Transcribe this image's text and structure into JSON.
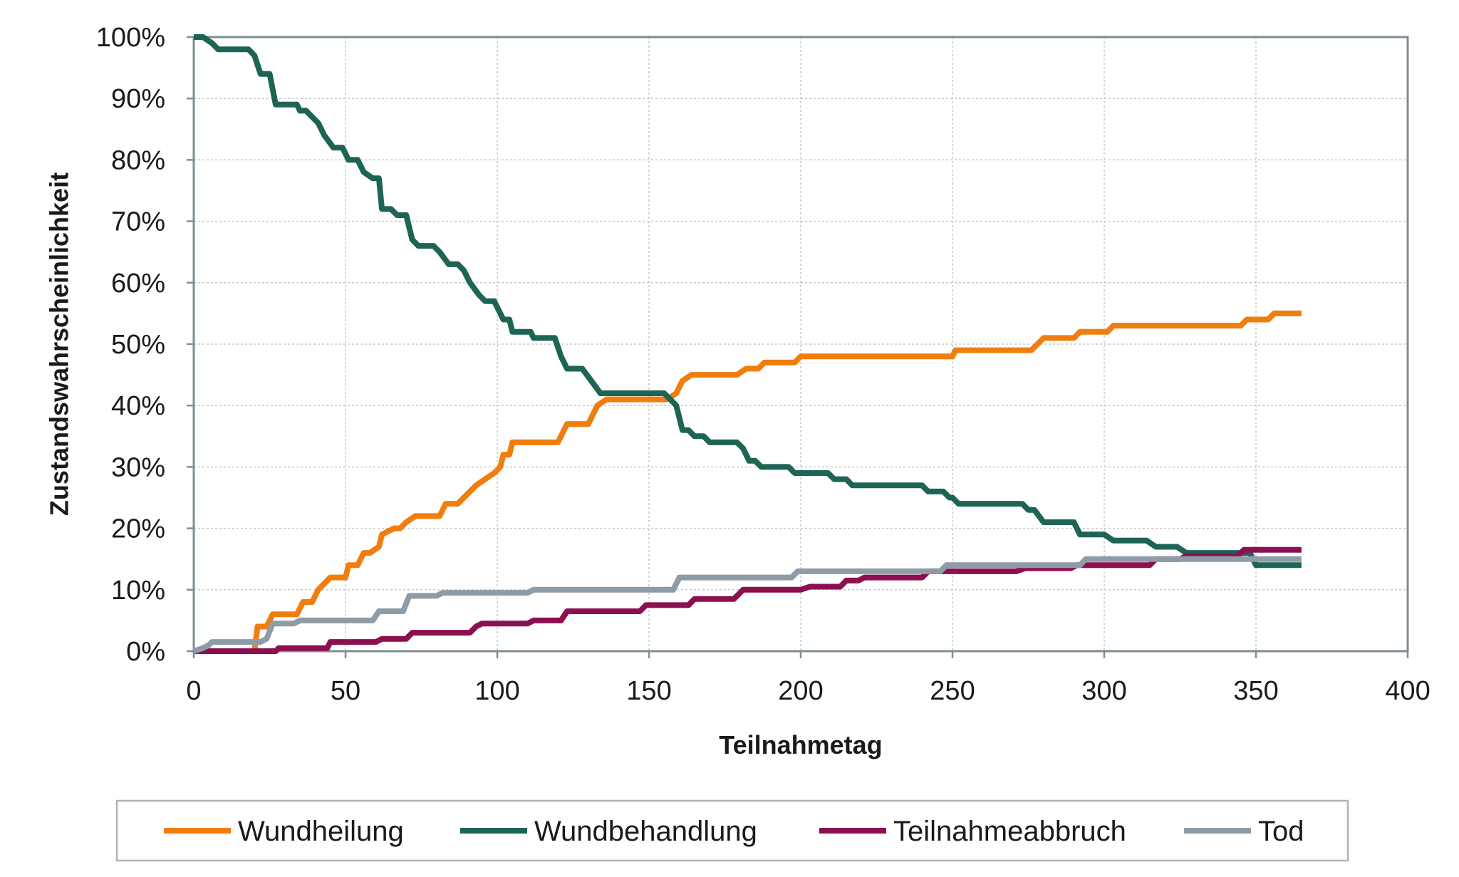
{
  "chart_data": {
    "type": "line",
    "title": "",
    "xlabel": "Teilnahmetag",
    "ylabel": "Zustandswahrscheinlichkeit",
    "xlim": [
      0,
      400
    ],
    "ylim": [
      0,
      100
    ],
    "x_ticks": [
      0,
      50,
      100,
      150,
      200,
      250,
      300,
      350,
      400
    ],
    "y_ticks": [
      0,
      10,
      20,
      30,
      40,
      50,
      60,
      70,
      80,
      90,
      100
    ],
    "y_tick_labels": [
      "0%",
      "10%",
      "20%",
      "30%",
      "40%",
      "50%",
      "60%",
      "70%",
      "80%",
      "90%",
      "100%"
    ],
    "grid": true,
    "legend_position": "bottom",
    "series": [
      {
        "name": "Wundheilung",
        "color": "#f07e0e",
        "points": [
          [
            0,
            0
          ],
          [
            20,
            0
          ],
          [
            21,
            4
          ],
          [
            24,
            4
          ],
          [
            26,
            6
          ],
          [
            34,
            6
          ],
          [
            36,
            8
          ],
          [
            39,
            8
          ],
          [
            41,
            10
          ],
          [
            43,
            11
          ],
          [
            45,
            12
          ],
          [
            50,
            12
          ],
          [
            51,
            14
          ],
          [
            54,
            14
          ],
          [
            56,
            16
          ],
          [
            58,
            16
          ],
          [
            61,
            17
          ],
          [
            62,
            19
          ],
          [
            66,
            20
          ],
          [
            68,
            20
          ],
          [
            70,
            21
          ],
          [
            73,
            22
          ],
          [
            81,
            22
          ],
          [
            83,
            24
          ],
          [
            87,
            24
          ],
          [
            89,
            25
          ],
          [
            91,
            26
          ],
          [
            93,
            27
          ],
          [
            96,
            28
          ],
          [
            99,
            29
          ],
          [
            101,
            30
          ],
          [
            102,
            32
          ],
          [
            104,
            32
          ],
          [
            105,
            34
          ],
          [
            120,
            34
          ],
          [
            123,
            37
          ],
          [
            130,
            37
          ],
          [
            133,
            40
          ],
          [
            136,
            41
          ],
          [
            156,
            41
          ],
          [
            159,
            42
          ],
          [
            161,
            44
          ],
          [
            164,
            45
          ],
          [
            179,
            45
          ],
          [
            182,
            46
          ],
          [
            186,
            46
          ],
          [
            188,
            47
          ],
          [
            198,
            47
          ],
          [
            200,
            48
          ],
          [
            250,
            48
          ],
          [
            251,
            49
          ],
          [
            276,
            49
          ],
          [
            278,
            50
          ],
          [
            280,
            51
          ],
          [
            290,
            51
          ],
          [
            292,
            52
          ],
          [
            301,
            52
          ],
          [
            303,
            53
          ],
          [
            345,
            53
          ],
          [
            347,
            54
          ],
          [
            354,
            54
          ],
          [
            356,
            55
          ],
          [
            365,
            55
          ]
        ]
      },
      {
        "name": "Wundbehandlung",
        "color": "#1e6455",
        "points": [
          [
            0,
            100
          ],
          [
            3,
            100
          ],
          [
            6,
            99
          ],
          [
            8,
            98
          ],
          [
            18,
            98
          ],
          [
            20,
            97
          ],
          [
            22,
            94
          ],
          [
            25,
            94
          ],
          [
            27,
            89
          ],
          [
            34,
            89
          ],
          [
            35,
            88
          ],
          [
            37,
            88
          ],
          [
            39,
            87
          ],
          [
            41,
            86
          ],
          [
            43,
            84
          ],
          [
            46,
            82
          ],
          [
            49,
            82
          ],
          [
            51,
            80
          ],
          [
            54,
            80
          ],
          [
            56,
            78
          ],
          [
            59,
            77
          ],
          [
            61,
            77
          ],
          [
            62,
            72
          ],
          [
            65,
            72
          ],
          [
            67,
            71
          ],
          [
            70,
            71
          ],
          [
            72,
            67
          ],
          [
            74,
            66
          ],
          [
            79,
            66
          ],
          [
            81,
            65
          ],
          [
            84,
            63
          ],
          [
            87,
            63
          ],
          [
            89,
            62
          ],
          [
            91,
            60
          ],
          [
            94,
            58
          ],
          [
            96,
            57
          ],
          [
            99,
            57
          ],
          [
            101,
            55
          ],
          [
            102,
            54
          ],
          [
            104,
            54
          ],
          [
            105,
            52
          ],
          [
            111,
            52
          ],
          [
            112,
            51
          ],
          [
            119,
            51
          ],
          [
            121,
            48
          ],
          [
            123,
            46
          ],
          [
            128,
            46
          ],
          [
            131,
            44
          ],
          [
            134,
            42
          ],
          [
            155,
            42
          ],
          [
            157,
            41
          ],
          [
            159,
            40
          ],
          [
            161,
            36
          ],
          [
            163,
            36
          ],
          [
            165,
            35
          ],
          [
            168,
            35
          ],
          [
            170,
            34
          ],
          [
            179,
            34
          ],
          [
            181,
            33
          ],
          [
            183,
            31
          ],
          [
            185,
            31
          ],
          [
            187,
            30
          ],
          [
            196,
            30
          ],
          [
            198,
            29
          ],
          [
            209,
            29
          ],
          [
            211,
            28
          ],
          [
            215,
            28
          ],
          [
            217,
            27
          ],
          [
            240,
            27
          ],
          [
            242,
            26
          ],
          [
            247,
            26
          ],
          [
            249,
            25
          ],
          [
            250,
            25
          ],
          [
            252,
            24
          ],
          [
            273,
            24
          ],
          [
            275,
            23
          ],
          [
            277,
            23
          ],
          [
            280,
            21
          ],
          [
            290,
            21
          ],
          [
            292,
            19
          ],
          [
            300,
            19
          ],
          [
            303,
            18
          ],
          [
            314,
            18
          ],
          [
            317,
            17
          ],
          [
            324,
            17
          ],
          [
            327,
            16
          ],
          [
            348,
            16
          ],
          [
            350,
            14
          ],
          [
            365,
            14
          ]
        ]
      },
      {
        "name": "Teilnahmeabbruch",
        "color": "#8c1050",
        "points": [
          [
            0,
            0
          ],
          [
            27,
            0
          ],
          [
            28,
            0.5
          ],
          [
            44,
            0.5
          ],
          [
            45,
            1.5
          ],
          [
            60,
            1.5
          ],
          [
            62,
            2
          ],
          [
            70,
            2
          ],
          [
            72,
            3
          ],
          [
            91,
            3
          ],
          [
            93,
            4
          ],
          [
            95,
            4.5
          ],
          [
            110,
            4.5
          ],
          [
            112,
            5
          ],
          [
            121,
            5
          ],
          [
            123,
            6.5
          ],
          [
            147,
            6.5
          ],
          [
            149,
            7.5
          ],
          [
            163,
            7.5
          ],
          [
            165,
            8.5
          ],
          [
            178,
            8.5
          ],
          [
            181,
            10
          ],
          [
            200,
            10
          ],
          [
            203,
            10.5
          ],
          [
            213,
            10.5
          ],
          [
            215,
            11.5
          ],
          [
            219,
            11.5
          ],
          [
            221,
            12
          ],
          [
            240,
            12
          ],
          [
            242,
            13
          ],
          [
            271,
            13
          ],
          [
            274,
            13.5
          ],
          [
            289,
            13.5
          ],
          [
            291,
            14
          ],
          [
            315,
            14
          ],
          [
            317,
            15
          ],
          [
            325,
            15
          ],
          [
            327,
            15.5
          ],
          [
            344,
            15.5
          ],
          [
            346,
            16.5
          ],
          [
            365,
            16.5
          ]
        ]
      },
      {
        "name": "Tod",
        "color": "#8e9ca8",
        "points": [
          [
            0,
            0
          ],
          [
            3,
            0.5
          ],
          [
            5,
            1
          ],
          [
            6,
            1.5
          ],
          [
            22,
            1.5
          ],
          [
            24,
            2
          ],
          [
            26,
            4.5
          ],
          [
            33,
            4.5
          ],
          [
            35,
            5
          ],
          [
            59,
            5
          ],
          [
            61,
            6.5
          ],
          [
            69,
            6.5
          ],
          [
            71,
            9
          ],
          [
            80,
            9
          ],
          [
            82,
            9.5
          ],
          [
            110,
            9.5
          ],
          [
            112,
            10
          ],
          [
            158,
            10
          ],
          [
            160,
            12
          ],
          [
            197,
            12
          ],
          [
            199,
            13
          ],
          [
            246,
            13
          ],
          [
            248,
            14
          ],
          [
            292,
            14
          ],
          [
            294,
            15
          ],
          [
            365,
            15
          ]
        ]
      }
    ]
  }
}
